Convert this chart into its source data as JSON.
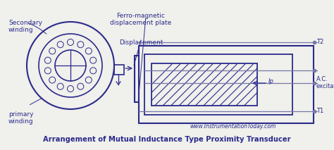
{
  "bg_color": "#f0f0ec",
  "line_color": "#2a2a8c",
  "line_color2": "#7777aa",
  "text_color": "#2a2a8c",
  "title": "Arrangement of Mutual Inductance Type Proximity Transducer",
  "subtitle": "www.InstrumentationToday.com",
  "labels": {
    "secondary_winding": "Secondary\nwinding",
    "primary_winding": "primary\nwinding",
    "ferro_magnetic": "Ferro-magnetic\ndisplacement plate",
    "displacement": "Displacement",
    "T1": "T1",
    "T2": "T2",
    "Ip": "Ip",
    "ac_excitation": "A.C.\nexcitation"
  }
}
